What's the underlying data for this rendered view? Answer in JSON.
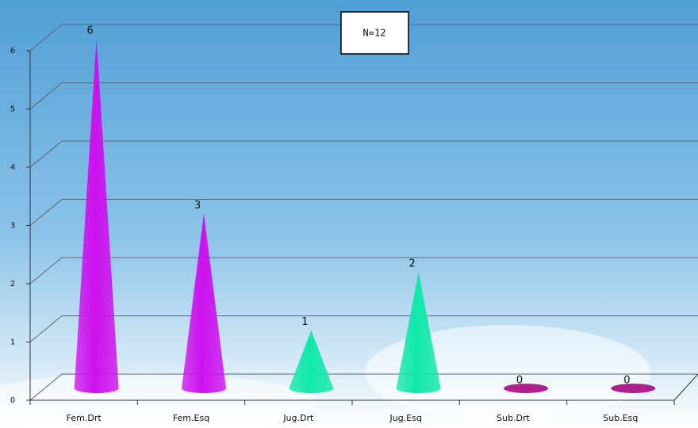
{
  "chart_data": {
    "type": "cone-bar",
    "annotation": "N=12",
    "categories": [
      "Fem.Drt",
      "Fem.Esq",
      "Jug.Drt",
      "Jug.Esq",
      "Sub.Drt",
      "Sub.Esq"
    ],
    "values": [
      6,
      3,
      1,
      2,
      0,
      0
    ],
    "colors": [
      "#cc11ee",
      "#cc11ee",
      "#10e8a8",
      "#10e8a8",
      "#b0208c",
      "#b0208c"
    ],
    "ylim": [
      0,
      6
    ],
    "yticks": [
      0,
      1,
      2,
      3,
      4,
      5,
      6
    ],
    "grid": true
  }
}
